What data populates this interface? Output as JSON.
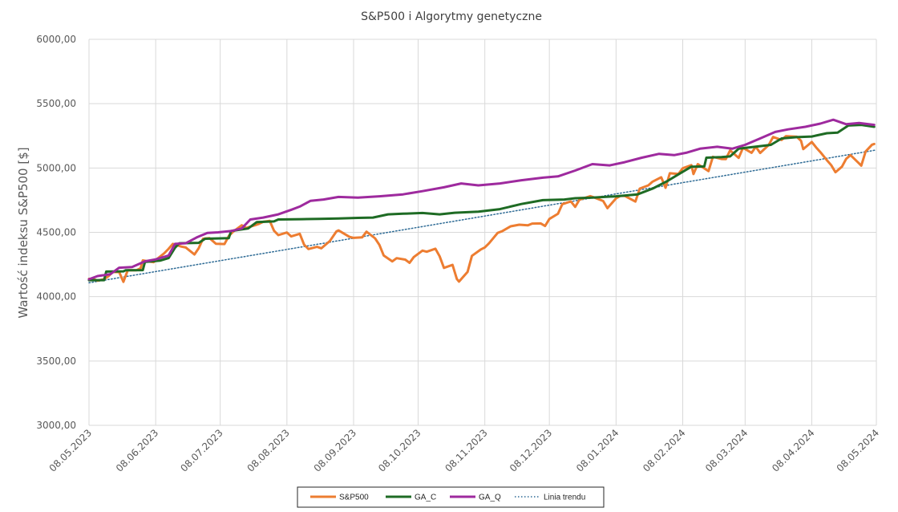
{
  "chart_data": {
    "type": "line",
    "title": "S&P500 i Algorytmy genetyczne",
    "xlabel": "",
    "ylabel": "Wartość indeksu S&P500 [$]",
    "xlim": [
      "2023-05-08",
      "2024-05-08"
    ],
    "ylim": [
      3000,
      6000
    ],
    "y_ticks": [
      "3000,00",
      "3500,00",
      "4000,00",
      "4500,00",
      "5000,00",
      "5500,00",
      "6000,00"
    ],
    "x_ticks": [
      "08.05.2023",
      "08.06.2023",
      "08.07.2023",
      "08.08.2023",
      "08.09.2023",
      "08.10.2023",
      "08.11.2023",
      "08.12.2023",
      "08.01.2024",
      "08.02.2024",
      "08.03.2024",
      "08.04.2024",
      "08.05.2024"
    ],
    "grid": true,
    "legend_position": "bottom",
    "series": [
      {
        "name": "S&P500",
        "color": "#ED7D31",
        "style": "solid",
        "points": [
          [
            "2023-05-08",
            4138
          ],
          [
            "2023-05-10",
            4137
          ],
          [
            "2023-05-12",
            4124
          ],
          [
            "2023-05-15",
            4136
          ],
          [
            "2023-05-17",
            4158
          ],
          [
            "2023-05-19",
            4191
          ],
          [
            "2023-05-22",
            4192
          ],
          [
            "2023-05-24",
            4115
          ],
          [
            "2023-05-26",
            4205
          ],
          [
            "2023-05-30",
            4205
          ],
          [
            "2023-06-01",
            4221
          ],
          [
            "2023-06-02",
            4282
          ],
          [
            "2023-06-05",
            4273
          ],
          [
            "2023-06-07",
            4268
          ],
          [
            "2023-06-09",
            4298
          ],
          [
            "2023-06-12",
            4338
          ],
          [
            "2023-06-14",
            4372
          ],
          [
            "2023-06-16",
            4410
          ],
          [
            "2023-06-20",
            4389
          ],
          [
            "2023-06-22",
            4382
          ],
          [
            "2023-06-26",
            4328
          ],
          [
            "2023-06-28",
            4376
          ],
          [
            "2023-06-30",
            4450
          ],
          [
            "2023-07-03",
            4455
          ],
          [
            "2023-07-06",
            4411
          ],
          [
            "2023-07-10",
            4409
          ],
          [
            "2023-07-12",
            4472
          ],
          [
            "2023-07-14",
            4505
          ],
          [
            "2023-07-18",
            4555
          ],
          [
            "2023-07-20",
            4534
          ],
          [
            "2023-07-24",
            4554
          ],
          [
            "2023-07-26",
            4566
          ],
          [
            "2023-07-28",
            4582
          ],
          [
            "2023-07-31",
            4589
          ],
          [
            "2023-08-02",
            4513
          ],
          [
            "2023-08-04",
            4478
          ],
          [
            "2023-08-08",
            4499
          ],
          [
            "2023-08-10",
            4468
          ],
          [
            "2023-08-14",
            4489
          ],
          [
            "2023-08-16",
            4404
          ],
          [
            "2023-08-18",
            4370
          ],
          [
            "2023-08-22",
            4387
          ],
          [
            "2023-08-24",
            4376
          ],
          [
            "2023-08-28",
            4433
          ],
          [
            "2023-08-31",
            4507
          ],
          [
            "2023-09-01",
            4515
          ],
          [
            "2023-09-06",
            4465
          ],
          [
            "2023-09-08",
            4457
          ],
          [
            "2023-09-12",
            4461
          ],
          [
            "2023-09-14",
            4505
          ],
          [
            "2023-09-18",
            4453
          ],
          [
            "2023-09-20",
            4402
          ],
          [
            "2023-09-22",
            4320
          ],
          [
            "2023-09-26",
            4274
          ],
          [
            "2023-09-28",
            4299
          ],
          [
            "2023-10-02",
            4288
          ],
          [
            "2023-10-04",
            4263
          ],
          [
            "2023-10-06",
            4308
          ],
          [
            "2023-10-10",
            4358
          ],
          [
            "2023-10-12",
            4349
          ],
          [
            "2023-10-16",
            4373
          ],
          [
            "2023-10-18",
            4314
          ],
          [
            "2023-10-20",
            4224
          ],
          [
            "2023-10-24",
            4247
          ],
          [
            "2023-10-26",
            4137
          ],
          [
            "2023-10-27",
            4117
          ],
          [
            "2023-10-31",
            4193
          ],
          [
            "2023-11-02",
            4317
          ],
          [
            "2023-11-06",
            4365
          ],
          [
            "2023-11-08",
            4383
          ],
          [
            "2023-11-10",
            4415
          ],
          [
            "2023-11-14",
            4496
          ],
          [
            "2023-11-16",
            4508
          ],
          [
            "2023-11-20",
            4547
          ],
          [
            "2023-11-24",
            4559
          ],
          [
            "2023-11-28",
            4554
          ],
          [
            "2023-11-30",
            4568
          ],
          [
            "2023-12-04",
            4569
          ],
          [
            "2023-12-06",
            4549
          ],
          [
            "2023-12-08",
            4604
          ],
          [
            "2023-12-12",
            4644
          ],
          [
            "2023-12-14",
            4719
          ],
          [
            "2023-12-18",
            4740
          ],
          [
            "2023-12-20",
            4698
          ],
          [
            "2023-12-22",
            4754
          ],
          [
            "2023-12-27",
            4781
          ],
          [
            "2023-12-29",
            4770
          ],
          [
            "2024-01-02",
            4743
          ],
          [
            "2024-01-04",
            4688
          ],
          [
            "2024-01-08",
            4764
          ],
          [
            "2024-01-10",
            4783
          ],
          [
            "2024-01-12",
            4784
          ],
          [
            "2024-01-17",
            4739
          ],
          [
            "2024-01-19",
            4840
          ],
          [
            "2024-01-23",
            4865
          ],
          [
            "2024-01-25",
            4894
          ],
          [
            "2024-01-29",
            4928
          ],
          [
            "2024-01-31",
            4846
          ],
          [
            "2024-02-02",
            4959
          ],
          [
            "2024-02-06",
            4954
          ],
          [
            "2024-02-08",
            4998
          ],
          [
            "2024-02-12",
            5022
          ],
          [
            "2024-02-13",
            4953
          ],
          [
            "2024-02-15",
            5030
          ],
          [
            "2024-02-20",
            4976
          ],
          [
            "2024-02-22",
            5087
          ],
          [
            "2024-02-26",
            5070
          ],
          [
            "2024-02-28",
            5069
          ],
          [
            "2024-03-01",
            5137
          ],
          [
            "2024-03-05",
            5079
          ],
          [
            "2024-03-07",
            5157
          ],
          [
            "2024-03-11",
            5118
          ],
          [
            "2024-03-13",
            5165
          ],
          [
            "2024-03-15",
            5117
          ],
          [
            "2024-03-19",
            5179
          ],
          [
            "2024-03-21",
            5241
          ],
          [
            "2024-03-25",
            5218
          ],
          [
            "2024-03-27",
            5248
          ],
          [
            "2024-04-01",
            5243
          ],
          [
            "2024-04-03",
            5211
          ],
          [
            "2024-04-04",
            5147
          ],
          [
            "2024-04-08",
            5202
          ],
          [
            "2024-04-10",
            5160
          ],
          [
            "2024-04-12",
            5123
          ],
          [
            "2024-04-15",
            5061
          ],
          [
            "2024-04-17",
            5022
          ],
          [
            "2024-04-19",
            4967
          ],
          [
            "2024-04-22",
            5010
          ],
          [
            "2024-04-24",
            5071
          ],
          [
            "2024-04-26",
            5100
          ],
          [
            "2024-04-30",
            5035
          ],
          [
            "2024-05-01",
            5018
          ],
          [
            "2024-05-03",
            5128
          ],
          [
            "2024-05-06",
            5181
          ],
          [
            "2024-05-07",
            5187
          ]
        ]
      },
      {
        "name": "GA_C",
        "color": "#1E6B24",
        "style": "solid",
        "points": [
          [
            "2023-05-08",
            4128
          ],
          [
            "2023-05-15",
            4128
          ],
          [
            "2023-05-16",
            4195
          ],
          [
            "2023-05-24",
            4197
          ],
          [
            "2023-05-25",
            4205
          ],
          [
            "2023-06-02",
            4206
          ],
          [
            "2023-06-03",
            4270
          ],
          [
            "2023-06-10",
            4280
          ],
          [
            "2023-06-14",
            4300
          ],
          [
            "2023-06-17",
            4380
          ],
          [
            "2023-06-19",
            4415
          ],
          [
            "2023-06-28",
            4418
          ],
          [
            "2023-07-01",
            4450
          ],
          [
            "2023-07-12",
            4455
          ],
          [
            "2023-07-13",
            4510
          ],
          [
            "2023-07-21",
            4530
          ],
          [
            "2023-07-25",
            4580
          ],
          [
            "2023-08-02",
            4585
          ],
          [
            "2023-08-04",
            4600
          ],
          [
            "2023-08-15",
            4602
          ],
          [
            "2023-08-23",
            4605
          ],
          [
            "2023-09-01",
            4608
          ],
          [
            "2023-09-10",
            4612
          ],
          [
            "2023-09-17",
            4615
          ],
          [
            "2023-09-24",
            4640
          ],
          [
            "2023-10-01",
            4645
          ],
          [
            "2023-10-10",
            4650
          ],
          [
            "2023-10-18",
            4640
          ],
          [
            "2023-10-25",
            4652
          ],
          [
            "2023-11-05",
            4660
          ],
          [
            "2023-11-15",
            4680
          ],
          [
            "2023-11-25",
            4720
          ],
          [
            "2023-12-05",
            4750
          ],
          [
            "2023-12-15",
            4755
          ],
          [
            "2023-12-20",
            4765
          ],
          [
            "2023-12-28",
            4770
          ],
          [
            "2024-01-08",
            4780
          ],
          [
            "2024-01-18",
            4795
          ],
          [
            "2024-01-25",
            4840
          ],
          [
            "2024-02-01",
            4900
          ],
          [
            "2024-02-07",
            4960
          ],
          [
            "2024-02-12",
            5010
          ],
          [
            "2024-02-18",
            5012
          ],
          [
            "2024-02-19",
            5080
          ],
          [
            "2024-02-26",
            5085
          ],
          [
            "2024-03-01",
            5090
          ],
          [
            "2024-03-05",
            5150
          ],
          [
            "2024-03-15",
            5170
          ],
          [
            "2024-03-20",
            5180
          ],
          [
            "2024-03-25",
            5230
          ],
          [
            "2024-04-01",
            5240
          ],
          [
            "2024-04-08",
            5245
          ],
          [
            "2024-04-15",
            5270
          ],
          [
            "2024-04-20",
            5275
          ],
          [
            "2024-04-25",
            5330
          ],
          [
            "2024-05-01",
            5335
          ],
          [
            "2024-05-07",
            5320
          ]
        ]
      },
      {
        "name": "GA_Q",
        "color": "#9E2A9E",
        "style": "solid",
        "points": [
          [
            "2023-05-08",
            4135
          ],
          [
            "2023-05-12",
            4160
          ],
          [
            "2023-05-18",
            4175
          ],
          [
            "2023-05-22",
            4225
          ],
          [
            "2023-05-28",
            4230
          ],
          [
            "2023-06-03",
            4275
          ],
          [
            "2023-06-08",
            4290
          ],
          [
            "2023-06-14",
            4320
          ],
          [
            "2023-06-17",
            4410
          ],
          [
            "2023-06-22",
            4415
          ],
          [
            "2023-06-27",
            4460
          ],
          [
            "2023-07-02",
            4495
          ],
          [
            "2023-07-07",
            4500
          ],
          [
            "2023-07-13",
            4510
          ],
          [
            "2023-07-18",
            4530
          ],
          [
            "2023-07-22",
            4600
          ],
          [
            "2023-07-28",
            4615
          ],
          [
            "2023-08-04",
            4640
          ],
          [
            "2023-08-10",
            4675
          ],
          [
            "2023-08-14",
            4700
          ],
          [
            "2023-08-19",
            4745
          ],
          [
            "2023-08-25",
            4755
          ],
          [
            "2023-09-01",
            4775
          ],
          [
            "2023-09-10",
            4770
          ],
          [
            "2023-09-20",
            4780
          ],
          [
            "2023-10-01",
            4795
          ],
          [
            "2023-10-10",
            4820
          ],
          [
            "2023-10-20",
            4850
          ],
          [
            "2023-10-28",
            4880
          ],
          [
            "2023-11-05",
            4865
          ],
          [
            "2023-11-15",
            4880
          ],
          [
            "2023-11-25",
            4905
          ],
          [
            "2023-12-05",
            4925
          ],
          [
            "2023-12-12",
            4935
          ],
          [
            "2023-12-20",
            4980
          ],
          [
            "2023-12-28",
            5030
          ],
          [
            "2024-01-05",
            5020
          ],
          [
            "2024-01-12",
            5045
          ],
          [
            "2024-01-20",
            5080
          ],
          [
            "2024-01-28",
            5110
          ],
          [
            "2024-02-04",
            5100
          ],
          [
            "2024-02-10",
            5120
          ],
          [
            "2024-02-16",
            5150
          ],
          [
            "2024-02-24",
            5165
          ],
          [
            "2024-03-02",
            5150
          ],
          [
            "2024-03-08",
            5180
          ],
          [
            "2024-03-15",
            5230
          ],
          [
            "2024-03-22",
            5280
          ],
          [
            "2024-03-28",
            5300
          ],
          [
            "2024-04-05",
            5320
          ],
          [
            "2024-04-12",
            5345
          ],
          [
            "2024-04-18",
            5375
          ],
          [
            "2024-04-24",
            5340
          ],
          [
            "2024-04-30",
            5350
          ],
          [
            "2024-05-07",
            5335
          ]
        ]
      },
      {
        "name": "Linia trendu",
        "color": "#2E6B95",
        "style": "dotted",
        "points": [
          [
            "2023-05-08",
            4108
          ],
          [
            "2024-05-08",
            5140
          ]
        ]
      }
    ]
  }
}
